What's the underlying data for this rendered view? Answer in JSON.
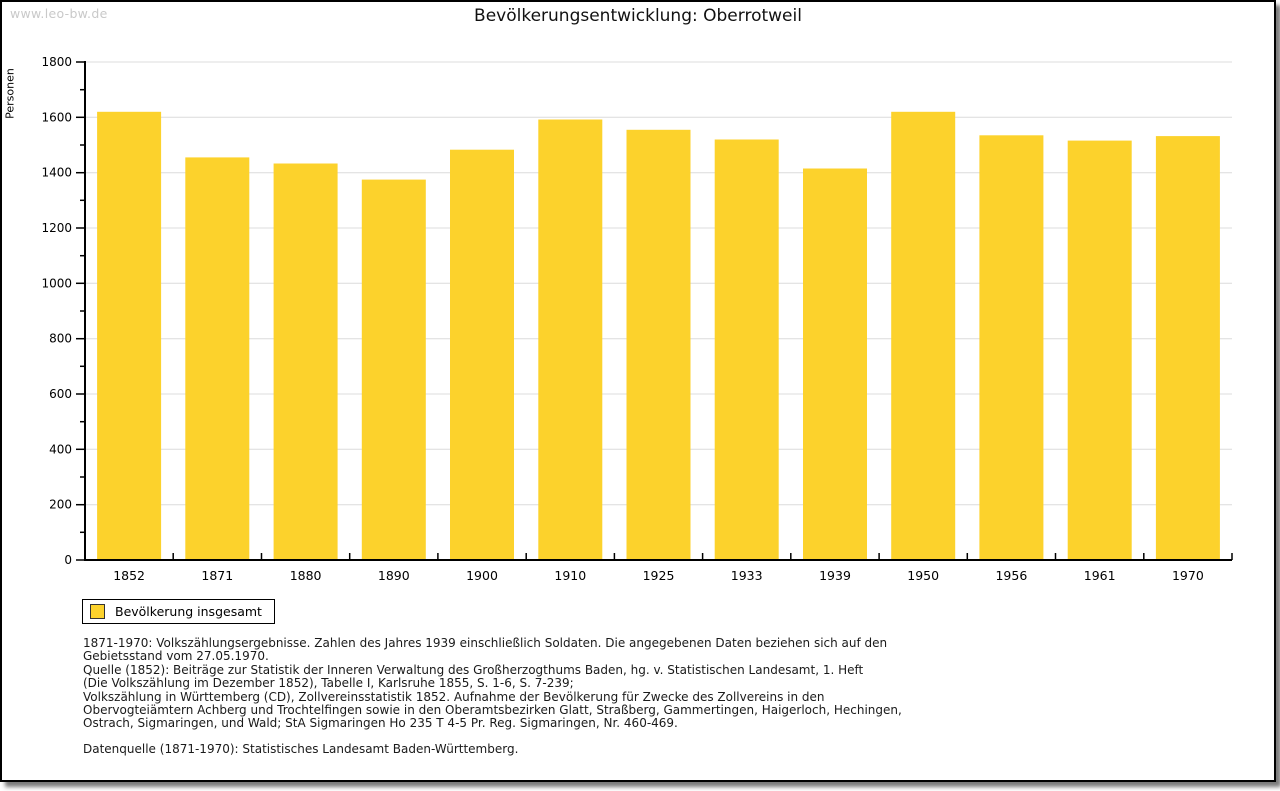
{
  "header": {
    "watermark": "www.leo-bw.de",
    "title": "Bevölkerungsentwicklung: Oberrotweil"
  },
  "chart_data": {
    "type": "bar",
    "title": "Bevölkerungsentwicklung: Oberrotweil",
    "xlabel": "",
    "ylabel": "Personen",
    "categories": [
      "1852",
      "1871",
      "1880",
      "1890",
      "1900",
      "1910",
      "1925",
      "1933",
      "1939",
      "1950",
      "1956",
      "1961",
      "1970"
    ],
    "values": [
      1620,
      1455,
      1433,
      1375,
      1483,
      1592,
      1555,
      1520,
      1415,
      1620,
      1535,
      1516,
      1532
    ],
    "series_name": "Bevölkerung insgesamt",
    "ylim": [
      0,
      1800
    ],
    "ytick_step": 200,
    "yminor_step": 100,
    "grid": true,
    "legend_position": "bottom-left",
    "bar_color": "#FCD22C",
    "grid_color": "#DCDCDC",
    "axis_color": "#000000"
  },
  "legend": {
    "label": "Bevölkerung insgesamt",
    "swatch_color": "#FCD22C"
  },
  "notes": {
    "lines": [
      "1871-1970: Volkszählungsergebnisse. Zahlen des Jahres 1939 einschließlich Soldaten. Die angegebenen Daten beziehen sich auf den",
      "Gebietsstand vom 27.05.1970.",
      "Quelle (1852): Beiträge zur Statistik der Inneren Verwaltung des Großherzogthums Baden, hg. v. Statistischen Landesamt, 1. Heft",
      "(Die Volkszählung im Dezember 1852), Tabelle I, Karlsruhe 1855, S. 1-6, S. 7-239;",
      "Volkszählung in Württemberg (CD), Zollvereinsstatistik 1852. Aufnahme der Bevölkerung für Zwecke des Zollvereins in den",
      "Obervogteiämtern Achberg und Trochtelfingen sowie in den Oberamtsbezirken Glatt, Straßberg, Gammertingen, Haigerloch, Hechingen,",
      "Ostrach, Sigmaringen, und Wald; StA Sigmaringen Ho 235 T 4-5 Pr. Reg. Sigmaringen, Nr. 460-469."
    ],
    "datasource": "Datenquelle (1871-1970): Statistisches Landesamt Baden-Württemberg."
  }
}
